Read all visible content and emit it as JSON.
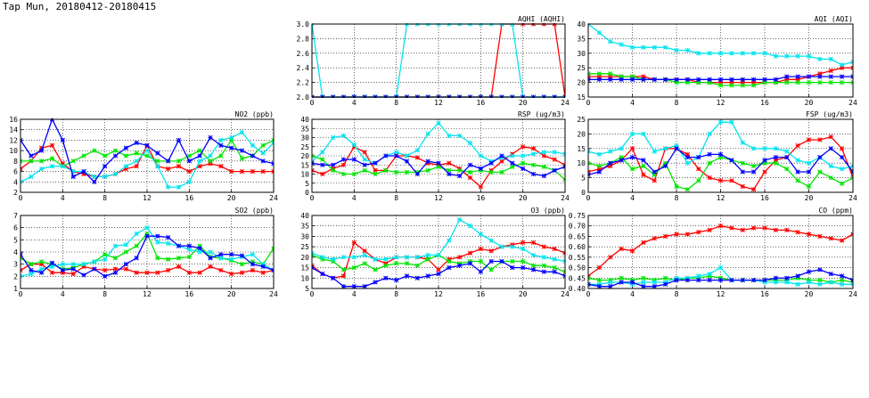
{
  "title": "Tap Mun, 20180412-20180415",
  "colors": {
    "grid": "#000000",
    "series": [
      "#ff0000",
      "#00e600",
      "#00e5ee",
      "#0000ff"
    ]
  },
  "chart_data": [
    {
      "type": "line",
      "title": "AQHI (AQHI)",
      "xlim": [
        0,
        24
      ],
      "ylim": [
        2.0,
        3.0
      ],
      "xticks": [
        0,
        4,
        8,
        12,
        16,
        20,
        24
      ],
      "yticks": [
        2.0,
        2.2,
        2.4,
        2.6,
        2.8,
        3.0
      ],
      "ytick_labels": [
        "2.0",
        "2.2",
        "2.4",
        "2.6",
        "2.8",
        "3.0"
      ],
      "series": [
        {
          "color": "red",
          "values": [
            2,
            2,
            2,
            2,
            2,
            2,
            2,
            2,
            2,
            2,
            2,
            2,
            2,
            2,
            2,
            2,
            2,
            2,
            3,
            3,
            3,
            3,
            3,
            3,
            2
          ]
        },
        {
          "color": "green",
          "values": [
            2,
            2,
            2,
            2,
            2,
            2,
            2,
            2,
            2,
            2,
            2,
            2,
            2,
            2,
            2,
            2,
            2,
            2,
            2,
            2,
            2,
            2,
            2,
            2,
            2
          ]
        },
        {
          "color": "cyan",
          "values": [
            3,
            2,
            2,
            2,
            2,
            2,
            2,
            2,
            2,
            3,
            3,
            3,
            3,
            3,
            3,
            3,
            3,
            3,
            3,
            3,
            2,
            2,
            2,
            2,
            2
          ]
        },
        {
          "color": "blue",
          "values": [
            2,
            2,
            2,
            2,
            2,
            2,
            2,
            2,
            2,
            2,
            2,
            2,
            2,
            2,
            2,
            2,
            2,
            2,
            2,
            2,
            2,
            2,
            2,
            2,
            2
          ]
        }
      ]
    },
    {
      "type": "line",
      "title": "AQI (AQI)",
      "xlim": [
        0,
        24
      ],
      "ylim": [
        15,
        40
      ],
      "xticks": [
        0,
        4,
        8,
        12,
        16,
        20,
        24
      ],
      "yticks": [
        15,
        20,
        25,
        30,
        35,
        40
      ],
      "ytick_labels": [
        "15",
        "20",
        "25",
        "30",
        "35",
        "40"
      ],
      "series": [
        {
          "color": "red",
          "values": [
            22,
            22,
            22,
            22,
            22,
            22,
            21,
            21,
            21,
            21,
            20,
            20,
            20,
            20,
            20,
            20,
            20,
            20,
            21,
            21,
            22,
            23,
            24,
            25,
            25
          ]
        },
        {
          "color": "green",
          "values": [
            23,
            23,
            23,
            22,
            22,
            21,
            21,
            21,
            20,
            20,
            20,
            20,
            19,
            19,
            19,
            19,
            20,
            20,
            20,
            20,
            20,
            20,
            20,
            20,
            20
          ]
        },
        {
          "color": "cyan",
          "values": [
            40,
            37,
            34,
            33,
            32,
            32,
            32,
            32,
            31,
            31,
            30,
            30,
            30,
            30,
            30,
            30,
            30,
            29,
            29,
            29,
            29,
            28,
            28,
            26,
            27
          ]
        },
        {
          "color": "blue",
          "values": [
            21,
            21,
            21,
            21,
            21,
            21,
            21,
            21,
            21,
            21,
            21,
            21,
            21,
            21,
            21,
            21,
            21,
            21,
            22,
            22,
            22,
            22,
            22,
            22,
            22
          ]
        }
      ]
    },
    {
      "type": "line",
      "title": "NO2 (ppb)",
      "xlim": [
        0,
        24
      ],
      "ylim": [
        2,
        16
      ],
      "xticks": [
        0,
        4,
        8,
        12,
        16,
        20,
        24
      ],
      "yticks": [
        2,
        4,
        6,
        8,
        10,
        12,
        14,
        16
      ],
      "ytick_labels": [
        "2",
        "4",
        "6",
        "8",
        "10",
        "12",
        "14",
        "16"
      ],
      "series": [
        {
          "color": "red",
          "values": [
            6.5,
            8,
            10.5,
            11,
            7.5,
            6,
            5.5,
            5,
            5,
            5.5,
            6.5,
            7,
            11,
            7,
            6.5,
            7,
            6,
            7,
            7.5,
            7,
            6,
            6,
            6,
            6,
            6
          ]
        },
        {
          "color": "green",
          "values": [
            8,
            8,
            8,
            8.5,
            7,
            8,
            9,
            10,
            9,
            10,
            9,
            9.5,
            9,
            8,
            8,
            8,
            9,
            10,
            8,
            9,
            12,
            8.5,
            9,
            11,
            12
          ]
        },
        {
          "color": "cyan",
          "values": [
            4,
            5,
            6.5,
            7,
            7,
            6,
            6,
            5,
            5,
            5.5,
            7,
            8,
            10,
            7,
            3,
            3,
            4,
            8,
            9,
            12,
            12.5,
            13.5,
            11,
            9.5,
            11.5
          ]
        },
        {
          "color": "blue",
          "values": [
            12,
            9,
            10,
            16,
            12,
            5,
            6,
            4,
            7,
            9,
            10.5,
            11.5,
            11,
            9.5,
            8,
            12,
            8,
            9,
            12.5,
            11,
            10.5,
            10,
            9,
            8,
            7.5
          ]
        }
      ]
    },
    {
      "type": "line",
      "title": "RSP (ug/m3)",
      "xlim": [
        0,
        24
      ],
      "ylim": [
        0,
        40
      ],
      "xticks": [
        0,
        4,
        8,
        12,
        16,
        20,
        24
      ],
      "yticks": [
        0,
        5,
        10,
        15,
        20,
        25,
        30,
        35,
        40
      ],
      "ytick_labels": [
        "0",
        "5",
        "10",
        "15",
        "20",
        "25",
        "30",
        "35",
        "40"
      ],
      "series": [
        {
          "color": "red",
          "values": [
            12,
            10,
            13,
            15,
            25,
            22,
            12,
            12,
            20,
            20,
            19,
            16,
            15,
            16,
            13,
            8,
            3,
            12,
            17,
            21,
            25,
            24,
            20,
            18,
            15
          ]
        },
        {
          "color": "green",
          "values": [
            20,
            18,
            12,
            10,
            10,
            12,
            10,
            12,
            11,
            11,
            11,
            12,
            14,
            12,
            12,
            11,
            12,
            11,
            11,
            14,
            16,
            15,
            14,
            12,
            7
          ]
        },
        {
          "color": "cyan",
          "values": [
            17,
            22,
            30,
            31,
            26,
            18,
            16,
            20,
            22,
            20,
            23,
            32,
            38,
            31,
            31,
            27,
            20,
            17,
            19,
            20,
            20,
            21,
            22,
            22,
            21
          ]
        },
        {
          "color": "blue",
          "values": [
            16,
            15,
            15,
            18,
            18,
            15,
            16,
            20,
            20,
            17,
            10,
            17,
            16,
            10,
            9,
            15,
            13,
            16,
            20,
            16,
            13,
            10,
            9,
            12,
            14
          ]
        }
      ]
    },
    {
      "type": "line",
      "title": "FSP (ug/m3)",
      "xlim": [
        0,
        24
      ],
      "ylim": [
        0,
        25
      ],
      "xticks": [
        0,
        4,
        8,
        12,
        16,
        20,
        24
      ],
      "yticks": [
        0,
        5,
        10,
        15,
        20,
        25
      ],
      "ytick_labels": [
        "0",
        "5",
        "10",
        "15",
        "20",
        "25"
      ],
      "series": [
        {
          "color": "red",
          "values": [
            7,
            8,
            9,
            11,
            15,
            6,
            4,
            15,
            15,
            13,
            8,
            5,
            4,
            4,
            2,
            1,
            7,
            11,
            12,
            16,
            18,
            18,
            19,
            15,
            5
          ]
        },
        {
          "color": "green",
          "values": [
            10,
            9,
            10,
            12,
            8,
            9,
            6,
            10,
            2,
            1,
            4,
            10,
            12,
            11,
            10,
            9,
            10,
            10,
            8,
            4,
            2,
            7,
            5,
            3,
            5
          ]
        },
        {
          "color": "cyan",
          "values": [
            14,
            13,
            14,
            15,
            20,
            20,
            14,
            15,
            16,
            10,
            12,
            20,
            24,
            24,
            17,
            15,
            15,
            15,
            14,
            11,
            10,
            12,
            9,
            8,
            9
          ]
        },
        {
          "color": "blue",
          "values": [
            6,
            7,
            10,
            11,
            12,
            11,
            7,
            9,
            15,
            12,
            12,
            13,
            13,
            11,
            7,
            7,
            11,
            12,
            12,
            7,
            7,
            12,
            15,
            12,
            7
          ]
        }
      ]
    },
    {
      "type": "line",
      "title": "SO2 (ppb)",
      "xlim": [
        0,
        24
      ],
      "ylim": [
        1,
        7
      ],
      "xticks": [
        0,
        4,
        8,
        12,
        16,
        20,
        24
      ],
      "yticks": [
        1,
        2,
        3,
        4,
        5,
        6,
        7
      ],
      "ytick_labels": [
        "1",
        "2",
        "3",
        "4",
        "5",
        "6",
        "7"
      ],
      "series": [
        {
          "color": "red",
          "values": [
            2.5,
            3,
            3,
            2.3,
            2.3,
            2.2,
            2.8,
            2.6,
            2.5,
            2.6,
            2.6,
            2.3,
            2.3,
            2.3,
            2.5,
            2.8,
            2.3,
            2.3,
            2.8,
            2.5,
            2.2,
            2.3,
            2.5,
            2.3,
            2.5
          ]
        },
        {
          "color": "green",
          "values": [
            3.5,
            3,
            3.2,
            3,
            2.6,
            2.7,
            3,
            3.2,
            3.8,
            3.5,
            4,
            4.5,
            5.5,
            3.5,
            3.4,
            3.5,
            3.6,
            4.5,
            3.6,
            3.5,
            3.3,
            3,
            3.2,
            3,
            4.3
          ]
        },
        {
          "color": "cyan",
          "values": [
            2,
            2.2,
            2.6,
            2.8,
            3,
            3,
            3,
            3.2,
            3.4,
            4.5,
            4.6,
            5.5,
            6,
            4.8,
            4.7,
            4.5,
            4.2,
            4,
            4,
            3.5,
            3.4,
            3.6,
            3.8,
            3,
            2.5
          ]
        },
        {
          "color": "blue",
          "values": [
            3.8,
            2.5,
            2.3,
            3.1,
            2.5,
            2.6,
            2.1,
            2.6,
            2,
            2.3,
            3,
            3.5,
            5.3,
            5.3,
            5.2,
            4.5,
            4.5,
            4.3,
            3.5,
            3.8,
            3.8,
            3.7,
            3,
            2.8,
            2.5
          ]
        }
      ]
    },
    {
      "type": "line",
      "title": "O3 (ppb)",
      "xlim": [
        0,
        24
      ],
      "ylim": [
        5,
        40
      ],
      "xticks": [
        0,
        4,
        8,
        12,
        16,
        20,
        24
      ],
      "yticks": [
        5,
        10,
        15,
        20,
        25,
        30,
        35,
        40
      ],
      "ytick_labels": [
        "5",
        "10",
        "15",
        "20",
        "25",
        "30",
        "35",
        "40"
      ],
      "series": [
        {
          "color": "red",
          "values": [
            16,
            12,
            10,
            11,
            27,
            23,
            19,
            17,
            20,
            20,
            20,
            19,
            14,
            19,
            20,
            22,
            24,
            23,
            25,
            26,
            27,
            27,
            25,
            24,
            22
          ]
        },
        {
          "color": "green",
          "values": [
            21,
            19,
            18,
            14,
            15,
            17,
            14,
            16,
            17,
            17,
            16,
            19,
            21,
            18,
            17,
            18,
            18,
            14,
            18,
            18,
            18,
            16,
            16,
            15,
            13
          ]
        },
        {
          "color": "cyan",
          "values": [
            22,
            20,
            19,
            20,
            20,
            21,
            19,
            19,
            20,
            20,
            20,
            21,
            21,
            28,
            38,
            35,
            31,
            28,
            25,
            25,
            24,
            21,
            20,
            19,
            18
          ]
        },
        {
          "color": "blue",
          "values": [
            15,
            12,
            10,
            6,
            6,
            6,
            8,
            10,
            9,
            11,
            10,
            11,
            12,
            15,
            16,
            17,
            13,
            18,
            18,
            15,
            15,
            14,
            13,
            13,
            11
          ]
        }
      ]
    },
    {
      "type": "line",
      "title": "CO (ppm)",
      "xlim": [
        0,
        24
      ],
      "ylim": [
        0.4,
        0.75
      ],
      "xticks": [
        0,
        4,
        8,
        12,
        16,
        20,
        24
      ],
      "yticks": [
        0.4,
        0.45,
        0.5,
        0.55,
        0.6,
        0.65,
        0.7,
        0.75
      ],
      "ytick_labels": [
        "0.40",
        "0.45",
        "0.50",
        "0.55",
        "0.60",
        "0.65",
        "0.70",
        "0.75"
      ],
      "series": [
        {
          "color": "red",
          "values": [
            0.46,
            0.5,
            0.55,
            0.59,
            0.58,
            0.62,
            0.64,
            0.65,
            0.66,
            0.66,
            0.67,
            0.68,
            0.7,
            0.69,
            0.68,
            0.69,
            0.69,
            0.68,
            0.68,
            0.67,
            0.66,
            0.65,
            0.64,
            0.63,
            0.66
          ]
        },
        {
          "color": "green",
          "values": [
            0.45,
            0.44,
            0.44,
            0.45,
            0.44,
            0.45,
            0.44,
            0.45,
            0.44,
            0.45,
            0.45,
            0.46,
            0.45,
            0.44,
            0.44,
            0.44,
            0.44,
            0.44,
            0.44,
            0.45,
            0.44,
            0.44,
            0.43,
            0.44,
            0.43
          ]
        },
        {
          "color": "cyan",
          "values": [
            0.42,
            0.42,
            0.43,
            0.43,
            0.42,
            0.43,
            0.43,
            0.43,
            0.45,
            0.45,
            0.46,
            0.47,
            0.5,
            0.44,
            0.44,
            0.44,
            0.43,
            0.43,
            0.43,
            0.42,
            0.43,
            0.42,
            0.43,
            0.42,
            0.42
          ]
        },
        {
          "color": "blue",
          "values": [
            0.42,
            0.41,
            0.41,
            0.43,
            0.43,
            0.41,
            0.41,
            0.42,
            0.44,
            0.44,
            0.44,
            0.44,
            0.44,
            0.44,
            0.44,
            0.44,
            0.44,
            0.45,
            0.45,
            0.46,
            0.48,
            0.49,
            0.47,
            0.46,
            0.44
          ]
        }
      ]
    }
  ]
}
